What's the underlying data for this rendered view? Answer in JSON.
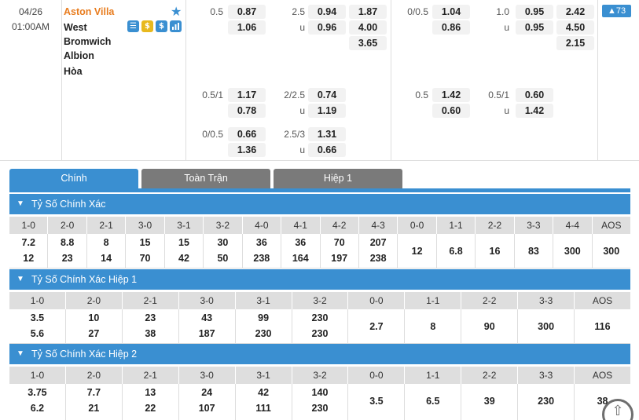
{
  "match": {
    "date": "04/26",
    "time": "01:00AM",
    "home_team": "Aston Villa",
    "away_team_lines": [
      "West",
      "Bromwich",
      "Albion"
    ],
    "draw_label": "Hòa",
    "icons": [
      {
        "name": "stats-icon",
        "glyph": "☰"
      },
      {
        "name": "coin-icon",
        "glyph": "$"
      },
      {
        "name": "money-icon",
        "glyph": "$"
      },
      {
        "name": "chart-icon",
        "glyph": "▮"
      }
    ],
    "more_count": "▲73",
    "fulltime": {
      "row1": {
        "hdp_line": "0.5",
        "hdp_home": "0.87",
        "hdp_away": "1.06",
        "ou_line": "2.5",
        "ou_under_label": "u",
        "ou_over": "0.94",
        "ou_under": "0.96",
        "x12_home": "1.87",
        "x12_away": "4.00",
        "x12_draw": "3.65"
      },
      "row2": {
        "hdp_line": "0.5/1",
        "hdp_home": "1.17",
        "hdp_away": "0.78",
        "ou_line": "2/2.5",
        "ou_under_label": "u",
        "ou_over": "0.74",
        "ou_under": "1.19"
      },
      "row3": {
        "hdp_line": "0/0.5",
        "hdp_home": "0.66",
        "hdp_away": "1.36",
        "ou_line": "2.5/3",
        "ou_under_label": "u",
        "ou_over": "1.31",
        "ou_under": "0.66"
      }
    },
    "firsthalf": {
      "row1": {
        "hdp_line": "0/0.5",
        "hdp_home": "1.04",
        "hdp_away": "0.86",
        "ou_line": "1.0",
        "ou_under_label": "u",
        "ou_over": "0.95",
        "ou_under": "0.95",
        "x12_home": "2.42",
        "x12_away": "4.50",
        "x12_draw": "2.15"
      },
      "row2": {
        "hdp_line": "0.5",
        "hdp_home": "1.42",
        "hdp_away": "0.60",
        "ou_line": "0.5/1",
        "ou_under_label": "u",
        "ou_over": "0.60",
        "ou_under": "1.42"
      }
    }
  },
  "tabs": [
    "Chính",
    "Toàn Trận",
    "Hiệp 1"
  ],
  "sections": [
    {
      "title": "Tỷ Số Chính Xác",
      "headers": [
        "1-0",
        "2-0",
        "2-1",
        "3-0",
        "3-1",
        "3-2",
        "4-0",
        "4-1",
        "4-2",
        "4-3",
        "0-0",
        "1-1",
        "2-2",
        "3-3",
        "4-4",
        "AOS"
      ],
      "top": [
        "7.2",
        "8.8",
        "8",
        "15",
        "15",
        "30",
        "36",
        "36",
        "70",
        "207",
        "",
        "",
        "",
        "",
        "",
        ""
      ],
      "bottom": [
        "12",
        "23",
        "14",
        "70",
        "42",
        "50",
        "238",
        "164",
        "197",
        "238",
        "",
        "",
        "",
        "",
        "",
        ""
      ],
      "single": [
        "",
        "",
        "",
        "",
        "",
        "",
        "",
        "",
        "",
        "",
        "12",
        "6.8",
        "16",
        "83",
        "300",
        ""
      ],
      "aos": "300"
    },
    {
      "title": "Tỷ Số Chính Xác Hiệp 1",
      "headers": [
        "1-0",
        "2-0",
        "2-1",
        "3-0",
        "3-1",
        "3-2",
        "0-0",
        "1-1",
        "2-2",
        "3-3",
        "AOS"
      ],
      "top": [
        "3.5",
        "10",
        "23",
        "43",
        "99",
        "230",
        "",
        "",
        "",
        "",
        ""
      ],
      "bottom": [
        "5.6",
        "27",
        "38",
        "187",
        "230",
        "230",
        "",
        "",
        "",
        "",
        ""
      ],
      "single": [
        "",
        "",
        "",
        "",
        "",
        "",
        "2.7",
        "8",
        "90",
        "300",
        "116"
      ]
    },
    {
      "title": "Tỷ Số Chính Xác Hiệp 2",
      "headers": [
        "1-0",
        "2-0",
        "2-1",
        "3-0",
        "3-1",
        "3-2",
        "0-0",
        "1-1",
        "2-2",
        "3-3",
        "AOS"
      ],
      "top": [
        "3.75",
        "7.7",
        "13",
        "24",
        "42",
        "140",
        "",
        "",
        "",
        "",
        ""
      ],
      "bottom": [
        "6.2",
        "21",
        "22",
        "107",
        "111",
        "230",
        "",
        "",
        "",
        "",
        ""
      ],
      "single": [
        "",
        "",
        "",
        "",
        "",
        "",
        "3.5",
        "6.5",
        "39",
        "230",
        "38"
      ]
    }
  ],
  "colors": {
    "accent": "#3a8fd1",
    "home_team": "#e87c1e",
    "tab_inactive": "#7a7a7a"
  }
}
